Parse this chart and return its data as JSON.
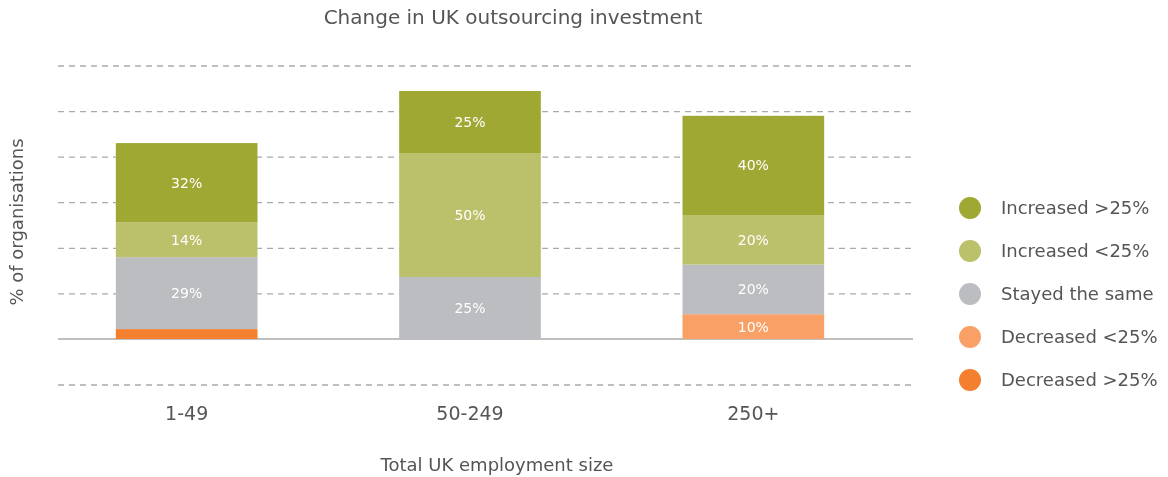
{
  "chart_data": {
    "type": "bar",
    "title": "Change in UK outsourcing investment",
    "xlabel": "Total UK employment size",
    "ylabel": "% of organisations",
    "categories": [
      "1-49",
      "50-249",
      "250+"
    ],
    "stacked": true,
    "series": [
      {
        "name": "Decreased >25%",
        "color": "#f37f2f",
        "values": [
          4,
          null,
          null
        ],
        "value_labels": [
          null,
          null,
          null
        ]
      },
      {
        "name": "Decreased <25%",
        "color": "#f9a066",
        "values": [
          null,
          null,
          10
        ],
        "value_labels": [
          null,
          null,
          "10%"
        ]
      },
      {
        "name": "Stayed the same",
        "color": "#bcbdc1",
        "values": [
          29,
          25,
          20
        ],
        "value_labels": [
          "29%",
          "25%",
          "20%"
        ]
      },
      {
        "name": "Increased <25%",
        "color": "#bbc06a",
        "values": [
          14,
          50,
          20
        ],
        "value_labels": [
          "14%",
          "50%",
          "20%"
        ]
      },
      {
        "name": "Increased >25%",
        "color": "#a0a834",
        "values": [
          32,
          25,
          40
        ],
        "value_labels": [
          "32%",
          "25%",
          "40%"
        ]
      }
    ],
    "tick_labels": "x",
    "legend": "right"
  }
}
